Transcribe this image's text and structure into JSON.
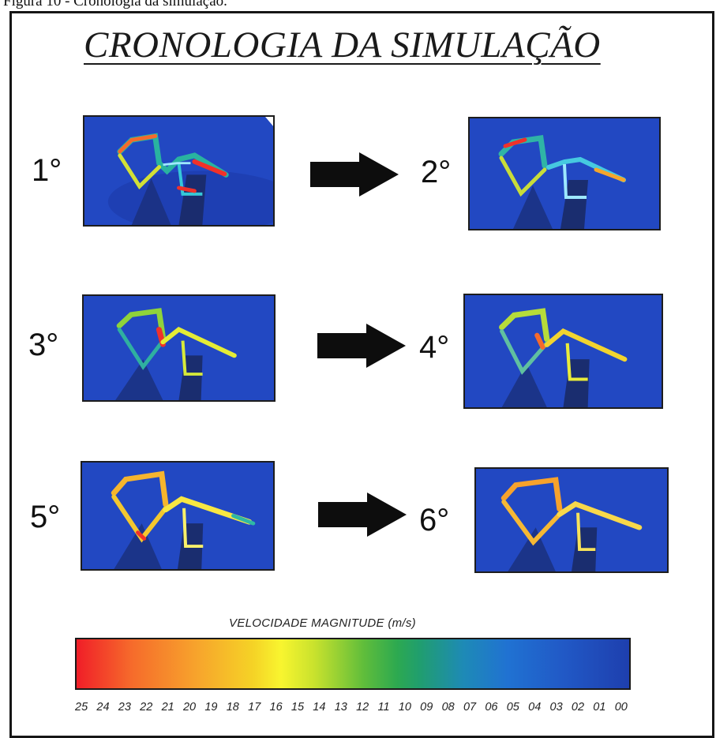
{
  "caption": "Figura 10 - Cronologia da simulação.",
  "title": "CRONOLOGIA DA SIMULAÇÃO",
  "steps": [
    {
      "label": "1°"
    },
    {
      "label": "2°"
    },
    {
      "label": "3°"
    },
    {
      "label": "4°"
    },
    {
      "label": "5°"
    },
    {
      "label": "6°"
    }
  ],
  "legend": {
    "title": "VELOCIDADE MAGNITUDE (m/s)",
    "ticks": [
      "25",
      "24",
      "23",
      "22",
      "21",
      "20",
      "19",
      "18",
      "17",
      "16",
      "15",
      "14",
      "13",
      "12",
      "11",
      "10",
      "09",
      "08",
      "07",
      "06",
      "05",
      "04",
      "03",
      "02",
      "01",
      "00"
    ],
    "colors": {
      "max": "#f01e28",
      "mid": "#f8f52f",
      "low": "#2da950",
      "min": "#1e3fae"
    }
  }
}
